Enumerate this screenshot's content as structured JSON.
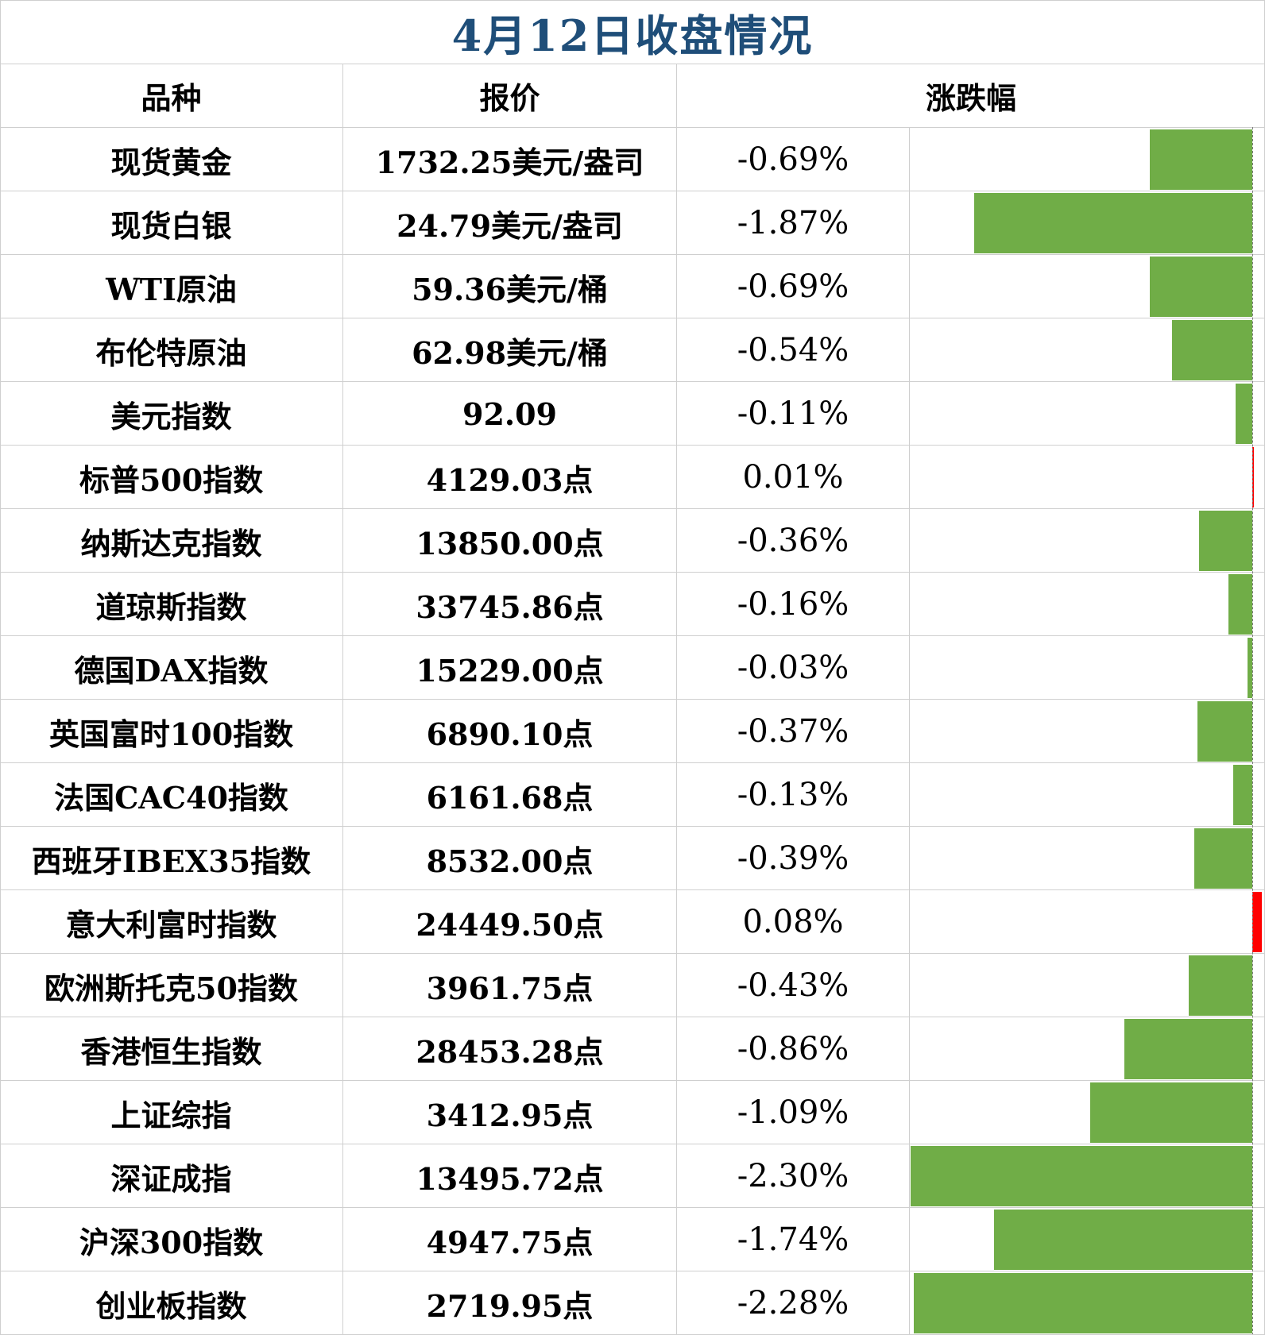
{
  "title": "4月12日收盘情况",
  "headers": {
    "name": "品种",
    "price": "报价",
    "change": "涨跌幅"
  },
  "colors": {
    "down": "#70ad47",
    "up": "#ff0000",
    "title": "#1f4e79"
  },
  "chart_data": {
    "type": "table",
    "bar_scale_max_abs_pct": 2.3,
    "rows": [
      {
        "name": "现货黄金",
        "price": "1732.25美元/盎司",
        "change_label": "-0.69%",
        "change": -0.69
      },
      {
        "name": "现货白银",
        "price": "24.79美元/盎司",
        "change_label": "-1.87%",
        "change": -1.87
      },
      {
        "name": "WTI原油",
        "price": "59.36美元/桶",
        "change_label": "-0.69%",
        "change": -0.69
      },
      {
        "name": "布伦特原油",
        "price": "62.98美元/桶",
        "change_label": "-0.54%",
        "change": -0.54
      },
      {
        "name": "美元指数",
        "price": "92.09",
        "change_label": "-0.11%",
        "change": -0.11
      },
      {
        "name": "标普500指数",
        "price": "4129.03点",
        "change_label": "0.01%",
        "change": 0.01
      },
      {
        "name": "纳斯达克指数",
        "price": "13850.00点",
        "change_label": "-0.36%",
        "change": -0.36
      },
      {
        "name": "道琼斯指数",
        "price": "33745.86点",
        "change_label": "-0.16%",
        "change": -0.16
      },
      {
        "name": "德国DAX指数",
        "price": "15229.00点",
        "change_label": "-0.03%",
        "change": -0.03
      },
      {
        "name": "英国富时100指数",
        "price": "6890.10点",
        "change_label": "-0.37%",
        "change": -0.37
      },
      {
        "name": "法国CAC40指数",
        "price": "6161.68点",
        "change_label": "-0.13%",
        "change": -0.13
      },
      {
        "name": "西班牙IBEX35指数",
        "price": "8532.00点",
        "change_label": "-0.39%",
        "change": -0.39
      },
      {
        "name": "意大利富时指数",
        "price": "24449.50点",
        "change_label": "0.08%",
        "change": 0.08
      },
      {
        "name": "欧洲斯托克50指数",
        "price": "3961.75点",
        "change_label": "-0.43%",
        "change": -0.43
      },
      {
        "name": "香港恒生指数",
        "price": "28453.28点",
        "change_label": "-0.86%",
        "change": -0.86
      },
      {
        "name": "上证综指",
        "price": "3412.95点",
        "change_label": "-1.09%",
        "change": -1.09
      },
      {
        "name": "深证成指",
        "price": "13495.72点",
        "change_label": "-2.30%",
        "change": -2.3
      },
      {
        "name": "沪深300指数",
        "price": "4947.75点",
        "change_label": "-1.74%",
        "change": -1.74
      },
      {
        "name": "创业板指数",
        "price": "2719.95点",
        "change_label": "-2.28%",
        "change": -2.28
      }
    ]
  }
}
